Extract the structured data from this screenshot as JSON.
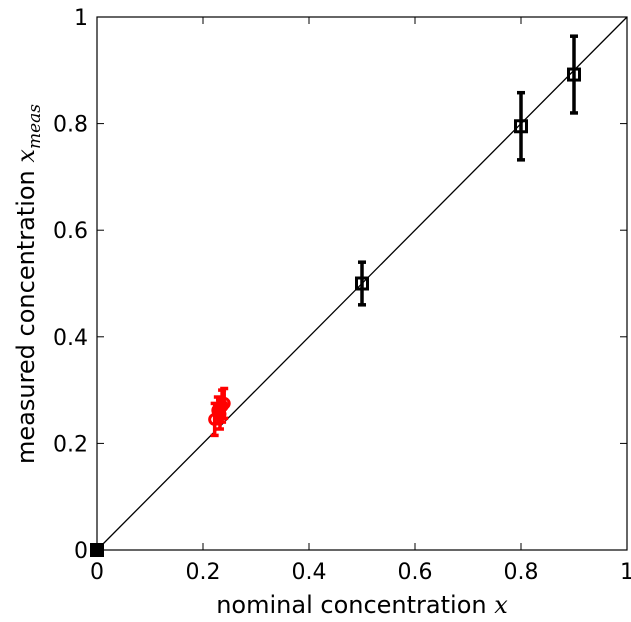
{
  "chart_data": {
    "type": "scatter",
    "title": "",
    "xlabel": "nominal concentration",
    "xlabel_math": "x",
    "ylabel": "measured concentration",
    "ylabel_math": "x",
    "ylabel_math_sub": "meas",
    "xlim": [
      0,
      1
    ],
    "ylim": [
      0,
      1
    ],
    "xticks": [
      "0",
      "0.2",
      "0.4",
      "0.6",
      "0.8",
      "1"
    ],
    "yticks": [
      "0",
      "0.2",
      "0.4",
      "0.6",
      "0.8",
      "1"
    ],
    "grid": false,
    "legend": "none",
    "reference_line": {
      "from": [
        0,
        0
      ],
      "to": [
        1,
        1
      ],
      "color": "#000000"
    },
    "series": [
      {
        "marker": "square",
        "color": "#000000",
        "points": [
          {
            "x": 0.0,
            "y": 0.0,
            "err": 0.0
          },
          {
            "x": 0.5,
            "y": 0.5,
            "err": 0.04
          },
          {
            "x": 0.8,
            "y": 0.795,
            "err": 0.063
          },
          {
            "x": 0.9,
            "y": 0.892,
            "err": 0.072
          }
        ]
      },
      {
        "marker": "circle",
        "color": "#ff0000",
        "points": [
          {
            "x": 0.222,
            "y": 0.245,
            "err": 0.03
          },
          {
            "x": 0.228,
            "y": 0.262,
            "err": 0.025
          },
          {
            "x": 0.232,
            "y": 0.255,
            "err": 0.028
          },
          {
            "x": 0.236,
            "y": 0.27,
            "err": 0.03
          },
          {
            "x": 0.24,
            "y": 0.275,
            "err": 0.028
          }
        ]
      }
    ]
  }
}
